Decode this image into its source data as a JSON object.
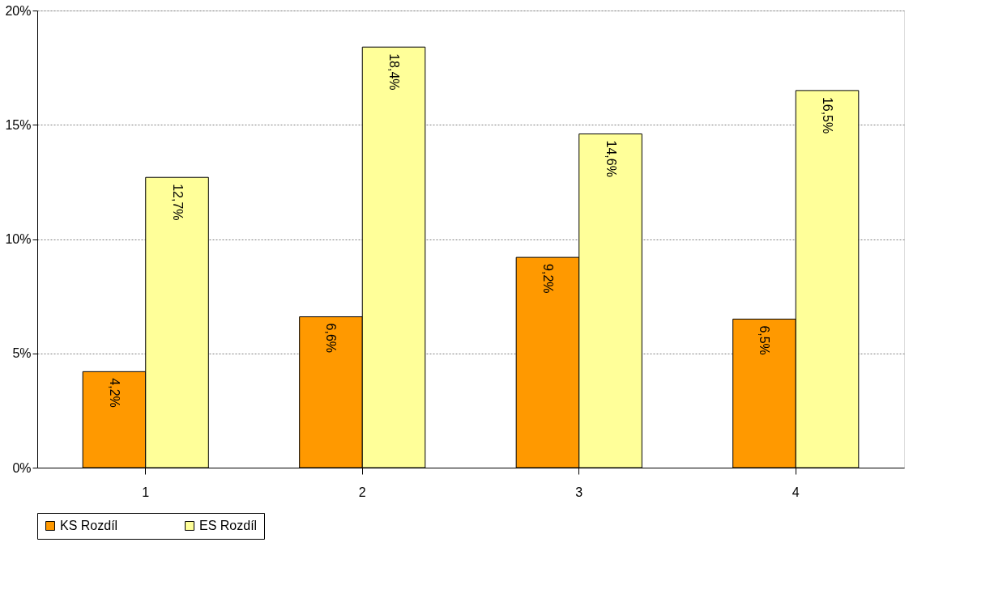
{
  "chart_data": {
    "type": "bar",
    "categories": [
      "1",
      "2",
      "3",
      "4"
    ],
    "series": [
      {
        "name": "KS Rozdíl",
        "color": "#ff9900",
        "values": [
          4.2,
          6.6,
          9.2,
          6.5
        ],
        "value_labels": [
          "4,2%",
          "6,6%",
          "9,2%",
          "6,5%"
        ]
      },
      {
        "name": "ES Rozdíl",
        "color": "#ffff99",
        "values": [
          12.7,
          18.4,
          14.6,
          16.5
        ],
        "value_labels": [
          "12,7%",
          "18,4%",
          "14,6%",
          "16,5%"
        ]
      }
    ],
    "ylim": [
      0,
      20
    ],
    "yticks": [
      {
        "value": 0,
        "label": "0%"
      },
      {
        "value": 5,
        "label": "5%"
      },
      {
        "value": 10,
        "label": "10%"
      },
      {
        "value": 15,
        "label": "15%"
      },
      {
        "value": 20,
        "label": "20%"
      }
    ],
    "grid": "y",
    "legend": "bottom"
  }
}
